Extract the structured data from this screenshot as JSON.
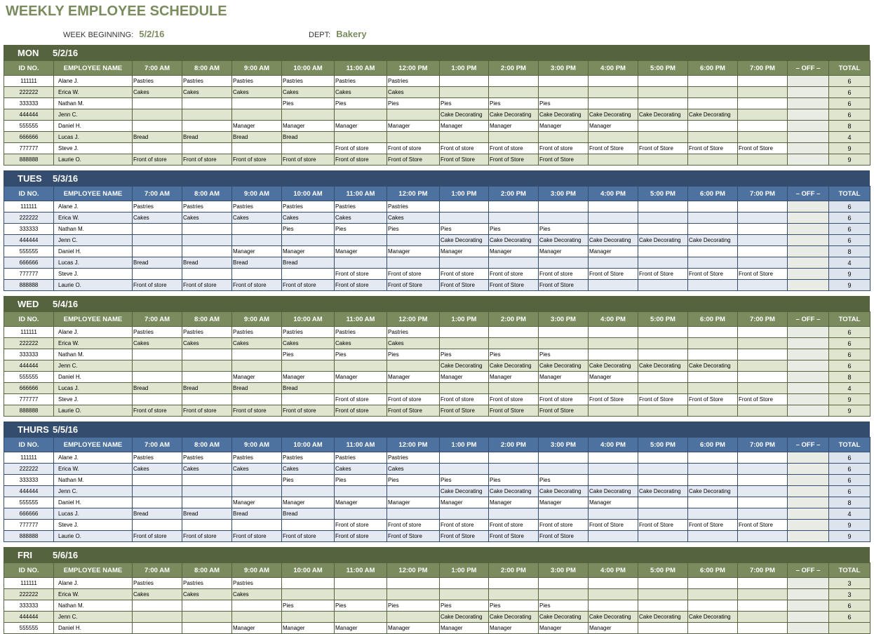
{
  "title": "WEEKLY EMPLOYEE SCHEDULE",
  "week_label": "WEEK BEGINNING:",
  "week_value": "5/2/16",
  "dept_label": "DEPT:",
  "dept_value": "Bakery",
  "columns": [
    "ID NO.",
    "EMPLOYEE NAME",
    "7:00 AM",
    "8:00 AM",
    "9:00 AM",
    "10:00 AM",
    "11:00 AM",
    "12:00 PM",
    "1:00 PM",
    "2:00 PM",
    "3:00 PM",
    "4:00 PM",
    "5:00 PM",
    "6:00 PM",
    "7:00 PM",
    "– OFF –",
    "TOTAL"
  ],
  "colors": {
    "green_band": "#55643f",
    "green_header": "#7a8c5e",
    "blue_band": "#344d6e",
    "blue_header": "#4d72a0"
  },
  "days": [
    {
      "name": "MON",
      "date": "5/2/16",
      "theme": "green",
      "rows": [
        {
          "id": "111111",
          "name": "Alane J.",
          "shifts": [
            "Pastries",
            "Pastries",
            "Pastries",
            "Pastries",
            "Pastries",
            "Pastries",
            "",
            "",
            "",
            "",
            "",
            "",
            ""
          ],
          "total": "6"
        },
        {
          "id": "222222",
          "name": "Erica W.",
          "shifts": [
            "Cakes",
            "Cakes",
            "Cakes",
            "Cakes",
            "Cakes",
            "Cakes",
            "",
            "",
            "",
            "",
            "",
            "",
            ""
          ],
          "total": "6"
        },
        {
          "id": "333333",
          "name": "Nathan M.",
          "shifts": [
            "",
            "",
            "",
            "Pies",
            "Pies",
            "Pies",
            "Pies",
            "Pies",
            "Pies",
            "",
            "",
            "",
            ""
          ],
          "total": "6"
        },
        {
          "id": "444444",
          "name": "Jenn C.",
          "shifts": [
            "",
            "",
            "",
            "",
            "",
            "",
            "Cake Decorating",
            "Cake Decorating",
            "Cake Decorating",
            "Cake Decorating",
            "Cake Decorating",
            "Cake Decorating",
            ""
          ],
          "total": "6"
        },
        {
          "id": "555555",
          "name": "Daniel H.",
          "shifts": [
            "",
            "",
            "Manager",
            "Manager",
            "Manager",
            "Manager",
            "Manager",
            "Manager",
            "Manager",
            "Manager",
            "",
            "",
            ""
          ],
          "total": "8"
        },
        {
          "id": "666666",
          "name": "Lucas J.",
          "shifts": [
            "Bread",
            "Bread",
            "Bread",
            "Bread",
            "",
            "",
            "",
            "",
            "",
            "",
            "",
            "",
            ""
          ],
          "total": "4"
        },
        {
          "id": "777777",
          "name": "Steve J.",
          "shifts": [
            "",
            "",
            "",
            "",
            "Front of store",
            "Front of store",
            "Front of store",
            "Front of store",
            "Front of store",
            "Front of Store",
            "Front of Store",
            "Front of Store",
            "Front of Store"
          ],
          "total": "9"
        },
        {
          "id": "888888",
          "name": "Laurie O.",
          "shifts": [
            "Front of store",
            "Front of store",
            "Front of store",
            "Front of store",
            "Front of store",
            "Front of Store",
            "Front of Store",
            "Front of Store",
            "Front of Store",
            "",
            "",
            "",
            ""
          ],
          "total": "9"
        }
      ]
    },
    {
      "name": "TUES",
      "date": "5/3/16",
      "theme": "blue",
      "rows": "same"
    },
    {
      "name": "WED",
      "date": "5/4/16",
      "theme": "green",
      "rows": "same"
    },
    {
      "name": "THURS",
      "date": "5/5/16",
      "theme": "blue",
      "rows": "same"
    },
    {
      "name": "FRI",
      "date": "5/6/16",
      "theme": "green",
      "rows": [
        {
          "id": "111111",
          "name": "Alane J.",
          "shifts": [
            "Pastries",
            "Pastries",
            "Pastries",
            "",
            "",
            "",
            "",
            "",
            "",
            "",
            "",
            "",
            ""
          ],
          "total": "3"
        },
        {
          "id": "222222",
          "name": "Erica W.",
          "shifts": [
            "Cakes",
            "Cakes",
            "Cakes",
            "",
            "",
            "",
            "",
            "",
            "",
            "",
            "",
            "",
            ""
          ],
          "total": "3"
        },
        {
          "id": "333333",
          "name": "Nathan M.",
          "shifts": [
            "",
            "",
            "",
            "Pies",
            "Pies",
            "Pies",
            "Pies",
            "Pies",
            "Pies",
            "",
            "",
            "",
            ""
          ],
          "total": "6"
        },
        {
          "id": "444444",
          "name": "Jenn C.",
          "shifts": [
            "",
            "",
            "",
            "",
            "",
            "",
            "Cake Decorating",
            "Cake Decorating",
            "Cake Decorating",
            "Cake Decorating",
            "Cake Decorating",
            "Cake Decorating",
            ""
          ],
          "total": "6"
        },
        {
          "id": "555555",
          "name": "Daniel H.",
          "shifts": [
            "",
            "",
            "Manager",
            "Manager",
            "Manager",
            "Manager",
            "Manager",
            "Manager",
            "Manager",
            "Manager",
            "",
            "",
            ""
          ],
          "total": ""
        }
      ]
    }
  ]
}
